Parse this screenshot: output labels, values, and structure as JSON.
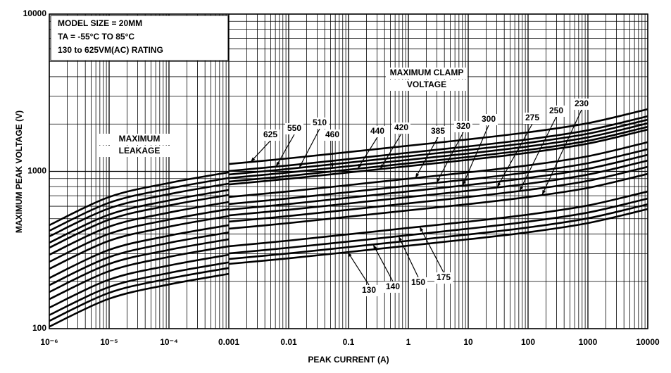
{
  "chart_data": {
    "type": "line",
    "x_label": "PEAK CURRENT (A)",
    "y_label": "MAXIMUM PEAK VOLTAGE (V)",
    "x_scale": "log",
    "y_scale": "log",
    "grid": true,
    "minor_grid": true,
    "color": "#000000",
    "xlim": [
      1e-06,
      10000
    ],
    "ylim": [
      100,
      10000
    ],
    "xticks": [
      {
        "value": 1e-06,
        "label": "10⁻⁶"
      },
      {
        "value": 1e-05,
        "label": "10⁻⁵"
      },
      {
        "value": 0.0001,
        "label": "10⁻⁴"
      },
      0.001,
      0.01,
      0.1,
      1,
      10,
      100,
      1000,
      10000
    ],
    "yticks": [
      100,
      1000,
      10000
    ],
    "notes": [
      "MODEL SIZE = 20MM",
      "TA = -55°C TO 85°C",
      "130 to 625VM(AC) RATING"
    ],
    "annotations": [
      "MAXIMUM",
      "LEAKAGE",
      "MAXIMUM CLAMP",
      "VOLTAGE"
    ],
    "series": [
      {
        "name": "625",
        "x": [
          0.001,
          0.01,
          0.1,
          1,
          10,
          100,
          1000,
          10000
        ],
        "values": [
          1114,
          1210,
          1327,
          1456,
          1597,
          1771,
          2024,
          2486
        ]
      },
      {
        "name": "550",
        "x": [
          0.001,
          0.01,
          0.1,
          1,
          10,
          100,
          1000,
          10000
        ],
        "values": [
          1005,
          1091,
          1197,
          1314,
          1441,
          1598,
          1826,
          2243
        ]
      },
      {
        "name": "510",
        "x": [
          0.001,
          0.01,
          0.1,
          1,
          10,
          100,
          1000,
          10000
        ],
        "values": [
          955,
          1037,
          1137,
          1248,
          1369,
          1518,
          1735,
          2132
        ]
      },
      {
        "name": "460",
        "x": [
          0.001,
          0.01,
          0.1,
          1,
          10,
          100,
          1000,
          10000
        ],
        "values": [
          906,
          984,
          1079,
          1184,
          1299,
          1441,
          1646,
          2022
        ]
      },
      {
        "name": "440",
        "x": [
          0.001,
          0.01,
          0.1,
          1,
          10,
          100,
          1000,
          10000
        ],
        "values": [
          861,
          935,
          1025,
          1125,
          1235,
          1369,
          1564,
          1922
        ]
      },
      {
        "name": "420",
        "x": [
          0.001,
          0.01,
          0.1,
          1,
          10,
          100,
          1000,
          10000
        ],
        "values": [
          826,
          897,
          984,
          1080,
          1184,
          1313,
          1501,
          1844
        ]
      },
      {
        "name": "385",
        "x": [
          0.001,
          0.01,
          0.1,
          1,
          10,
          100,
          1000,
          10000
        ],
        "values": [
          687,
          746,
          818,
          898,
          985,
          1092,
          1248,
          1533
        ]
      },
      {
        "name": "320",
        "x": [
          0.001,
          0.01,
          0.1,
          1,
          10,
          100,
          1000,
          10000
        ],
        "values": [
          620,
          673,
          738,
          810,
          889,
          986,
          1127,
          1384
        ]
      },
      {
        "name": "300",
        "x": [
          0.001,
          0.01,
          0.1,
          1,
          10,
          100,
          1000,
          10000
        ],
        "values": [
          571,
          620,
          680,
          746,
          819,
          908,
          1038,
          1274
        ]
      },
      {
        "name": "275",
        "x": [
          0.001,
          0.01,
          0.1,
          1,
          10,
          100,
          1000,
          10000
        ],
        "values": [
          525,
          570,
          625,
          686,
          753,
          835,
          954,
          1172
        ]
      },
      {
        "name": "250",
        "x": [
          0.001,
          0.01,
          0.1,
          1,
          10,
          100,
          1000,
          10000
        ],
        "values": [
          479,
          520,
          570,
          626,
          687,
          762,
          870,
          1069
        ]
      },
      {
        "name": "230",
        "x": [
          0.001,
          0.01,
          0.1,
          1,
          10,
          100,
          1000,
          10000
        ],
        "values": [
          432,
          469,
          515,
          565,
          619,
          687,
          785,
          964
        ]
      },
      {
        "name": "175",
        "x": [
          0.001,
          0.01,
          0.1,
          1,
          10,
          100,
          1000,
          10000
        ],
        "values": [
          334,
          363,
          398,
          437,
          479,
          531,
          607,
          745
        ]
      },
      {
        "name": "150",
        "x": [
          0.001,
          0.01,
          0.1,
          1,
          10,
          100,
          1000,
          10000
        ],
        "values": [
          301,
          327,
          358,
          393,
          432,
          479,
          547,
          672
        ]
      },
      {
        "name": "140",
        "x": [
          0.001,
          0.01,
          0.1,
          1,
          10,
          100,
          1000,
          10000
        ],
        "values": [
          277,
          301,
          330,
          362,
          397,
          440,
          503,
          618
        ]
      },
      {
        "name": "130",
        "x": [
          0.001,
          0.01,
          0.1,
          1,
          10,
          100,
          1000,
          10000
        ],
        "values": [
          258,
          280,
          307,
          337,
          370,
          410,
          469,
          576
        ]
      },
      {
        "x": [
          1e-06,
          1e-05,
          0.0001,
          0.001
        ],
        "values": [
          455,
          687,
          844,
          986
        ]
      },
      {
        "x": [
          1e-06,
          1e-05,
          0.0001,
          0.001
        ],
        "values": [
          419,
          632,
          777,
          908
        ]
      },
      {
        "x": [
          1e-06,
          1e-05,
          0.0001,
          0.001
        ],
        "values": [
          386,
          582,
          716,
          836
        ]
      },
      {
        "x": [
          1e-06,
          1e-05,
          0.0001,
          0.001
        ],
        "values": [
          352,
          531,
          653,
          762
        ]
      },
      {
        "x": [
          1e-06,
          1e-05,
          0.0001,
          0.001
        ],
        "values": [
          327,
          493,
          607,
          708
        ]
      },
      {
        "x": [
          1e-06,
          1e-05,
          0.0001,
          0.001
        ],
        "values": [
          295,
          445,
          547,
          639
        ]
      },
      {
        "x": [
          1e-06,
          1e-05,
          0.0001,
          0.001
        ],
        "values": [
          266,
          401,
          493,
          576
        ]
      },
      {
        "x": [
          1e-06,
          1e-05,
          0.0001,
          0.001
        ],
        "values": [
          240,
          362,
          445,
          520
        ]
      },
      {
        "x": [
          1e-06,
          1e-05,
          0.0001,
          0.001
        ],
        "values": [
          210,
          317,
          390,
          455
        ]
      },
      {
        "x": [
          1e-06,
          1e-05,
          0.0001,
          0.001
        ],
        "values": [
          189,
          285,
          351,
          409
        ]
      },
      {
        "x": [
          1e-06,
          1e-05,
          0.0001,
          0.001
        ],
        "values": [
          171,
          258,
          317,
          370
        ]
      },
      {
        "x": [
          1e-06,
          1e-05,
          0.0001,
          0.001
        ],
        "values": [
          154,
          232,
          286,
          334
        ]
      },
      {
        "x": [
          1e-06,
          1e-05,
          0.0001,
          0.001
        ],
        "values": [
          136,
          205,
          252,
          295
        ]
      },
      {
        "x": [
          1e-06,
          1e-05,
          0.0001,
          0.001
        ],
        "values": [
          122,
          184,
          226,
          264
        ]
      },
      {
        "x": [
          1e-06,
          1e-05,
          0.0001,
          0.001
        ],
        "values": [
          112,
          169,
          208,
          243
        ]
      },
      {
        "x": [
          1e-06,
          1e-05,
          0.0001,
          0.001
        ],
        "values": [
          103,
          155,
          191,
          223
        ]
      }
    ]
  }
}
